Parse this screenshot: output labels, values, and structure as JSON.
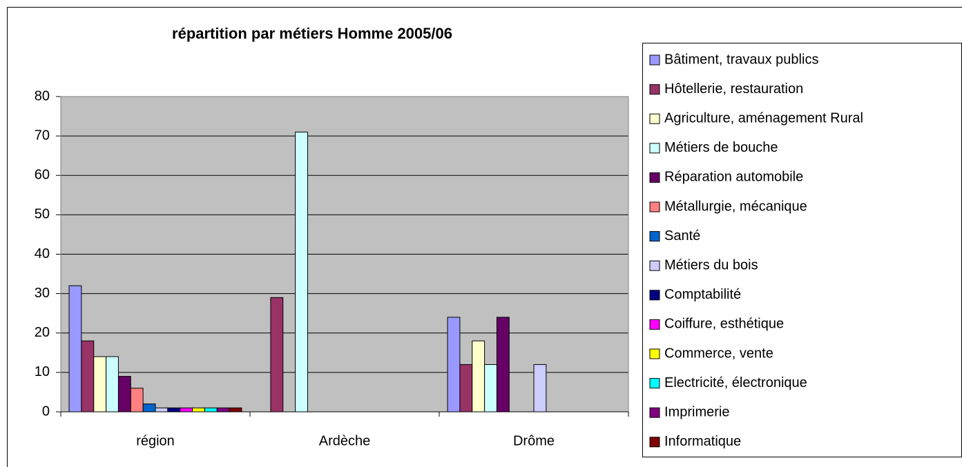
{
  "chart_data": {
    "type": "bar",
    "title": "répartition par métiers Homme 2005/06",
    "categories": [
      "région",
      "Ardèche",
      "Drôme"
    ],
    "series": [
      {
        "name": "Bâtiment, travaux publics",
        "color": "#9999ff",
        "values": [
          32,
          0,
          24
        ]
      },
      {
        "name": "Hôtellerie, restauration",
        "color": "#993366",
        "values": [
          18,
          29,
          12
        ]
      },
      {
        "name": "Agriculture, aménagement Rural",
        "color": "#ffffcc",
        "values": [
          14,
          0,
          18
        ]
      },
      {
        "name": "Métiers de bouche",
        "color": "#ccffff",
        "values": [
          14,
          71,
          12
        ]
      },
      {
        "name": "Réparation automobile",
        "color": "#660066",
        "values": [
          9,
          0,
          24
        ]
      },
      {
        "name": "Métallurgie, mécanique",
        "color": "#ff8080",
        "values": [
          6,
          0,
          0
        ]
      },
      {
        "name": "Santé",
        "color": "#0066cc",
        "values": [
          2,
          0,
          0
        ]
      },
      {
        "name": "Métiers du bois",
        "color": "#ccccff",
        "values": [
          1,
          0,
          12
        ]
      },
      {
        "name": "Comptabilité",
        "color": "#000080",
        "values": [
          1,
          0,
          0
        ]
      },
      {
        "name": "Coiffure, esthétique",
        "color": "#ff00ff",
        "values": [
          1,
          0,
          0
        ]
      },
      {
        "name": "Commerce, vente",
        "color": "#ffff00",
        "values": [
          1,
          0,
          0
        ]
      },
      {
        "name": "Electricité, électronique",
        "color": "#00ffff",
        "values": [
          1,
          0,
          0
        ]
      },
      {
        "name": "Imprimerie",
        "color": "#800080",
        "values": [
          1,
          0,
          0
        ]
      },
      {
        "name": "Informatique",
        "color": "#800000",
        "values": [
          1,
          0,
          0
        ]
      }
    ],
    "ylim": [
      0,
      80
    ],
    "yticks": [
      0,
      10,
      20,
      30,
      40,
      50,
      60,
      70,
      80
    ],
    "grid": true,
    "legend": "right"
  }
}
